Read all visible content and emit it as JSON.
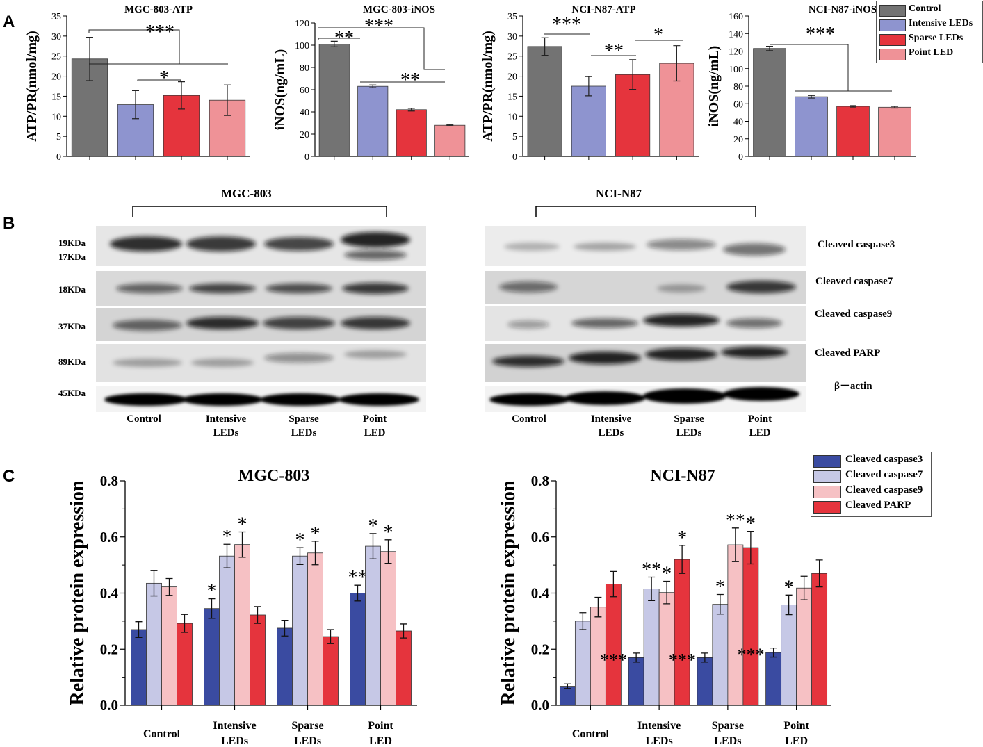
{
  "panels": {
    "a_letter": "A",
    "b_letter": "B",
    "c_letter": "C"
  },
  "colors": {
    "control": "#737373",
    "intensive": "#8e94cf",
    "sparse": "#e5343d",
    "point": "#ef9297",
    "c3": "#3a4ba1",
    "c7": "#c6c8e6",
    "c9": "#f6c1c4",
    "parp": "#e5343d"
  },
  "legend_a": [
    "Control",
    "Intensive LEDs",
    "Sparse LEDs",
    "Point LED"
  ],
  "legend_c": [
    "Cleaved caspase3",
    "Cleaved caspase7",
    "Cleaved caspase9",
    "Cleaved PARP"
  ],
  "chart_data": [
    {
      "type": "bar",
      "title": "MGC-803-ATP",
      "ylabel": "ATP/PR(nmol/mg)",
      "categories": [
        "Control",
        "Intensive LEDs",
        "Sparse LEDs",
        "Point LED"
      ],
      "values": [
        24.3,
        12.9,
        15.2,
        14.0
      ],
      "errors": [
        5.4,
        3.5,
        3.4,
        3.8
      ],
      "ylim": [
        0,
        35
      ],
      "yticks": [
        "0",
        "5",
        "10",
        "15",
        "20",
        "25",
        "30",
        "35"
      ],
      "significance": [
        "***",
        "*"
      ]
    },
    {
      "type": "bar",
      "title": "MGC-803-iNOS",
      "ylabel": "iNOS(ng/mL)",
      "categories": [
        "Control",
        "Intensive LEDs",
        "Sparse LEDs",
        "Point LED"
      ],
      "values": [
        101,
        63,
        42,
        28
      ],
      "errors": [
        2.5,
        1.2,
        1.2,
        0.6
      ],
      "ylim": [
        0,
        120
      ],
      "yticks": [
        "0",
        "20",
        "40",
        "60",
        "80",
        "100",
        "120"
      ],
      "significance": [
        "**",
        "***",
        "**"
      ]
    },
    {
      "type": "bar",
      "title": "NCI-N87-ATP",
      "ylabel": "ATP/PR(nmol/mg)",
      "categories": [
        "Control",
        "Intensive LEDs",
        "Sparse LEDs",
        "Point LED"
      ],
      "values": [
        27.4,
        17.5,
        20.4,
        23.2
      ],
      "errors": [
        2.2,
        2.4,
        3.7,
        4.4
      ],
      "ylim": [
        0,
        35
      ],
      "yticks": [
        "0",
        "5",
        "10",
        "15",
        "20",
        "25",
        "30",
        "35"
      ],
      "significance": [
        "***",
        "**",
        "*"
      ]
    },
    {
      "type": "bar",
      "title": "NCI-N87-iNOS",
      "ylabel": "iNOS(ng/mL)",
      "categories": [
        "Control",
        "Intensive LEDs",
        "Sparse LEDs",
        "Point LED"
      ],
      "values": [
        123,
        68,
        57,
        56
      ],
      "errors": [
        2.5,
        1.5,
        0.8,
        1.0
      ],
      "ylim": [
        0,
        160
      ],
      "yticks": [
        "0",
        "20",
        "40",
        "60",
        "80",
        "100",
        "120",
        "140",
        "160"
      ],
      "significance": [
        "***"
      ]
    },
    {
      "type": "bar",
      "title": "MGC-803",
      "ylabel": "Relative protein expression",
      "categories": [
        "Control",
        "Intensive LEDs",
        "Sparse LEDs",
        "Point LED"
      ],
      "category_lines": [
        [
          "Control"
        ],
        [
          "Intensive",
          "LEDs"
        ],
        [
          "Sparse",
          "LEDs"
        ],
        [
          "Point",
          "LED"
        ]
      ],
      "ylim": [
        0,
        0.8
      ],
      "yticks": [
        "0.0",
        "0.2",
        "0.4",
        "0.6",
        "0.8"
      ],
      "series": [
        {
          "name": "Cleaved caspase3",
          "values": [
            0.27,
            0.345,
            0.275,
            0.4
          ],
          "errors": [
            0.028,
            0.035,
            0.028,
            0.028
          ],
          "sig": [
            "",
            "*",
            "",
            "**"
          ]
        },
        {
          "name": "Cleaved caspase7",
          "values": [
            0.435,
            0.532,
            0.532,
            0.567
          ],
          "errors": [
            0.045,
            0.042,
            0.03,
            0.045
          ],
          "sig": [
            "",
            "*",
            "*",
            "*"
          ]
        },
        {
          "name": "Cleaved caspase9",
          "values": [
            0.422,
            0.573,
            0.543,
            0.548
          ],
          "errors": [
            0.03,
            0.045,
            0.042,
            0.042
          ],
          "sig": [
            "",
            "*",
            "*",
            "*"
          ]
        },
        {
          "name": "Cleaved PARP",
          "values": [
            0.292,
            0.322,
            0.245,
            0.265
          ],
          "errors": [
            0.032,
            0.03,
            0.025,
            0.025
          ],
          "sig": [
            "",
            "",
            "",
            ""
          ]
        }
      ]
    },
    {
      "type": "bar",
      "title": "NCI-N87",
      "ylabel": "Relative protein expression",
      "categories": [
        "Control",
        "Intensive LEDs",
        "Sparse LEDs",
        "Point LED"
      ],
      "category_lines": [
        [
          "Control"
        ],
        [
          "Intensive",
          "LEDs"
        ],
        [
          "Sparse",
          "LEDs"
        ],
        [
          "Point",
          "LED"
        ]
      ],
      "ylim": [
        0,
        0.8
      ],
      "yticks": [
        "0.0",
        "0.2",
        "0.4",
        "0.6",
        "0.8"
      ],
      "series": [
        {
          "name": "Cleaved caspase3",
          "values": [
            0.068,
            0.17,
            0.17,
            0.188
          ],
          "errors": [
            0.008,
            0.016,
            0.016,
            0.016
          ],
          "sig": [
            "",
            "***",
            "***",
            "***"
          ]
        },
        {
          "name": "Cleaved caspase7",
          "values": [
            0.3,
            0.415,
            0.36,
            0.358
          ],
          "errors": [
            0.03,
            0.042,
            0.035,
            0.035
          ],
          "sig": [
            "",
            "**",
            "*",
            "*"
          ]
        },
        {
          "name": "Cleaved caspase9",
          "values": [
            0.35,
            0.402,
            0.572,
            0.418
          ],
          "errors": [
            0.035,
            0.04,
            0.06,
            0.042
          ],
          "sig": [
            "",
            "*",
            "**",
            ""
          ]
        },
        {
          "name": "Cleaved PARP",
          "values": [
            0.432,
            0.52,
            0.562,
            0.47
          ],
          "errors": [
            0.045,
            0.05,
            0.058,
            0.048
          ],
          "sig": [
            "",
            "*",
            "*",
            ""
          ]
        }
      ]
    }
  ],
  "blots": {
    "left_title": "MGC-803",
    "right_title": "NCI-N87",
    "kda_labels": [
      "19KDa",
      "17KDa",
      "18KDa",
      "37KDa",
      "89KDa",
      "45KDa"
    ],
    "band_names": [
      "Cleaved caspase3",
      "Cleaved caspase7",
      "Cleaved caspase9",
      "Cleaved PARP",
      "β－actin"
    ],
    "lanes": [
      [
        "Control"
      ],
      [
        "Intensive",
        "LEDs"
      ],
      [
        "Sparse",
        "LEDs"
      ],
      [
        "Point",
        "LED"
      ]
    ]
  }
}
